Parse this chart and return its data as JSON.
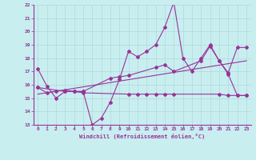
{
  "title": "",
  "xlabel": "Windchill (Refroidissement éolien,°C)",
  "ylabel": "",
  "xlim": [
    -0.5,
    23.5
  ],
  "ylim": [
    13,
    22
  ],
  "yticks": [
    13,
    14,
    15,
    16,
    17,
    18,
    19,
    20,
    21,
    22
  ],
  "xticks": [
    0,
    1,
    2,
    3,
    4,
    5,
    6,
    7,
    8,
    9,
    10,
    11,
    12,
    13,
    14,
    15,
    16,
    17,
    18,
    19,
    20,
    21,
    22,
    23
  ],
  "bg_color": "#c8eef0",
  "grid_color": "#b0d8da",
  "line_color": "#993399",
  "line_width": 0.8,
  "marker": "D",
  "marker_size": 2.0,
  "series1_x": [
    0,
    1,
    2,
    3,
    4,
    5,
    6,
    7,
    8,
    9,
    10,
    11,
    12,
    13,
    14,
    15,
    16,
    17,
    18,
    19,
    20,
    21,
    22,
    23
  ],
  "series1_y": [
    17.2,
    15.9,
    15.0,
    15.5,
    15.5,
    15.5,
    13.0,
    13.5,
    14.7,
    16.4,
    18.5,
    18.1,
    18.5,
    19.0,
    20.3,
    22.2,
    18.0,
    17.0,
    18.0,
    19.0,
    17.8,
    16.8,
    15.2,
    15.2
  ],
  "series2_x": [
    0,
    1,
    2,
    3,
    4,
    5,
    10,
    11,
    12,
    13,
    14,
    15,
    20,
    21,
    22,
    23
  ],
  "series2_y": [
    15.8,
    15.4,
    15.5,
    15.6,
    15.5,
    15.4,
    15.3,
    15.3,
    15.3,
    15.3,
    15.3,
    15.3,
    15.3,
    15.2,
    15.2,
    15.2
  ],
  "series3_x": [
    0,
    3,
    4,
    5,
    8,
    9,
    10,
    13,
    14,
    15,
    18,
    19,
    20,
    21,
    22,
    23
  ],
  "series3_y": [
    15.8,
    15.5,
    15.5,
    15.5,
    16.5,
    16.6,
    16.7,
    17.3,
    17.5,
    17.0,
    17.8,
    18.9,
    17.8,
    16.9,
    18.8,
    18.8
  ],
  "series4_x": [
    0,
    23
  ],
  "series4_y": [
    15.3,
    17.8
  ]
}
